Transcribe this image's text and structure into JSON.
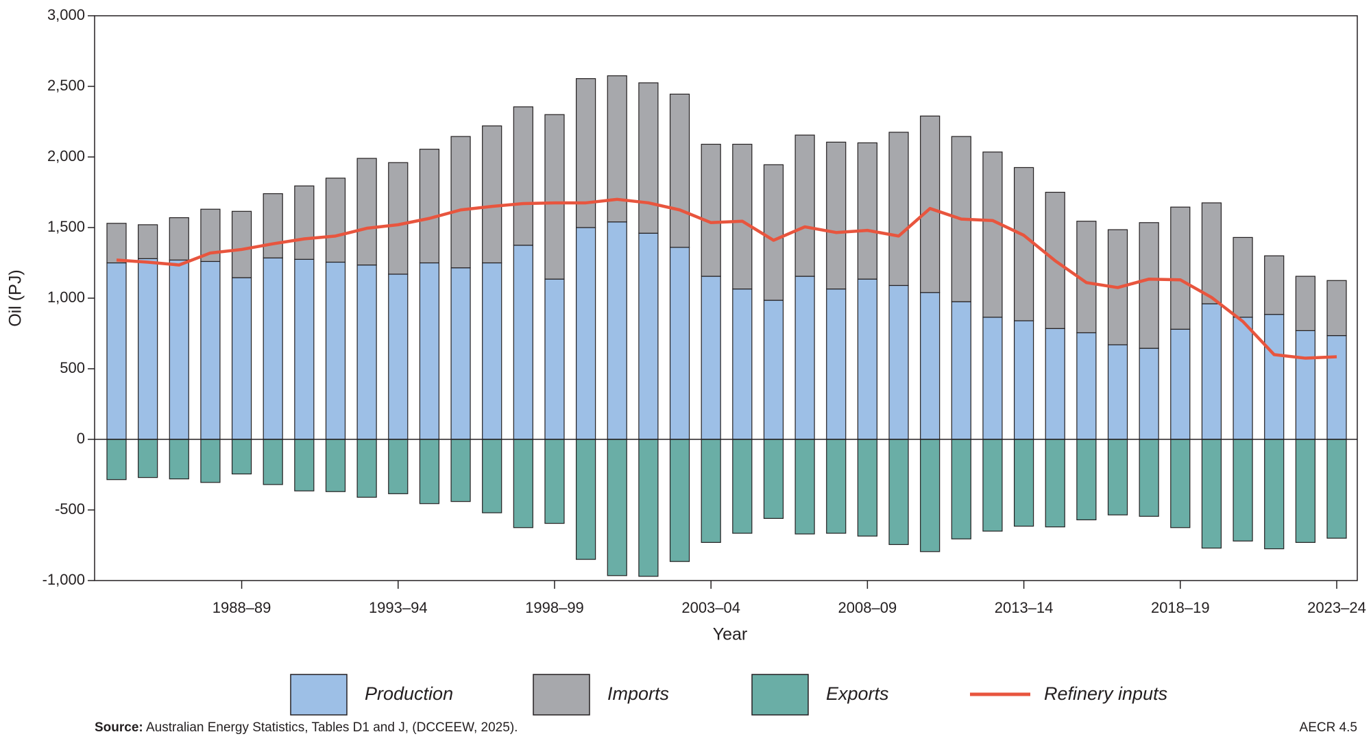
{
  "chart_data": {
    "type": "bar",
    "stacked": true,
    "x_label": "Year",
    "y_label": "Oil (PJ)",
    "categories": [
      null,
      null,
      null,
      null,
      "1988–89",
      null,
      null,
      null,
      null,
      "1993–94",
      null,
      null,
      null,
      null,
      "1998–99",
      null,
      null,
      null,
      null,
      "2003–04",
      null,
      null,
      null,
      null,
      "2008–09",
      null,
      null,
      null,
      null,
      "2013–14",
      null,
      null,
      null,
      null,
      "2018–19",
      null,
      null,
      null,
      null,
      "2023–24"
    ],
    "series": [
      {
        "name": "Production",
        "type": "bar",
        "color": "#9dbfe6",
        "values": [
          1250,
          1280,
          1270,
          1260,
          1145,
          1285,
          1275,
          1255,
          1235,
          1170,
          1250,
          1215,
          1250,
          1375,
          1135,
          1500,
          1540,
          1460,
          1360,
          1155,
          1065,
          985,
          1155,
          1065,
          1135,
          1090,
          1040,
          975,
          865,
          840,
          785,
          755,
          670,
          645,
          780,
          960,
          865,
          885,
          770,
          735
        ]
      },
      {
        "name": "Imports",
        "type": "bar",
        "color": "#a7a8ac",
        "values": [
          280,
          240,
          300,
          370,
          470,
          455,
          520,
          595,
          755,
          790,
          805,
          930,
          970,
          980,
          1165,
          1055,
          1035,
          1065,
          1085,
          935,
          1025,
          960,
          1000,
          1040,
          965,
          1085,
          1250,
          1170,
          1170,
          1085,
          965,
          790,
          815,
          890,
          865,
          715,
          565,
          415,
          385,
          390
        ]
      },
      {
        "name": "Exports",
        "type": "bar",
        "color": "#6aaea6",
        "values": [
          -285,
          -270,
          -280,
          -305,
          -245,
          -320,
          -365,
          -370,
          -410,
          -385,
          -455,
          -440,
          -520,
          -625,
          -595,
          -850,
          -965,
          -970,
          -865,
          -730,
          -665,
          -560,
          -670,
          -665,
          -685,
          -745,
          -795,
          -705,
          -650,
          -615,
          -620,
          -570,
          -535,
          -545,
          -625,
          -770,
          -720,
          -775,
          -730,
          -700
        ]
      },
      {
        "name": "Refinery inputs",
        "type": "line",
        "color": "#e8553e",
        "values": [
          1270,
          1255,
          1235,
          1320,
          1345,
          1385,
          1420,
          1440,
          1495,
          1520,
          1565,
          1625,
          1650,
          1670,
          1675,
          1675,
          1700,
          1675,
          1625,
          1535,
          1545,
          1410,
          1505,
          1465,
          1480,
          1440,
          1635,
          1560,
          1550,
          1445,
          1265,
          1110,
          1075,
          1135,
          1130,
          1005,
          835,
          600,
          575,
          585
        ]
      }
    ],
    "ylim": [
      -1000,
      3000
    ],
    "yticks": [
      {
        "value": -1000,
        "label": "-1,000"
      },
      -500,
      0,
      500,
      {
        "value": 1000,
        "label": "1,000"
      },
      {
        "value": 1500,
        "label": "1,500"
      },
      {
        "value": 2000,
        "label": "2,000"
      },
      {
        "value": 2500,
        "label": "2,500"
      },
      {
        "value": 3000,
        "label": "3,000"
      }
    ],
    "grid": false,
    "legend": "bottom",
    "source_label": "Source:",
    "source": "Australian Energy Statistics, Tables D1 and J, (DCCEEW, 2025).",
    "figure_id": "AECR 4.5"
  }
}
